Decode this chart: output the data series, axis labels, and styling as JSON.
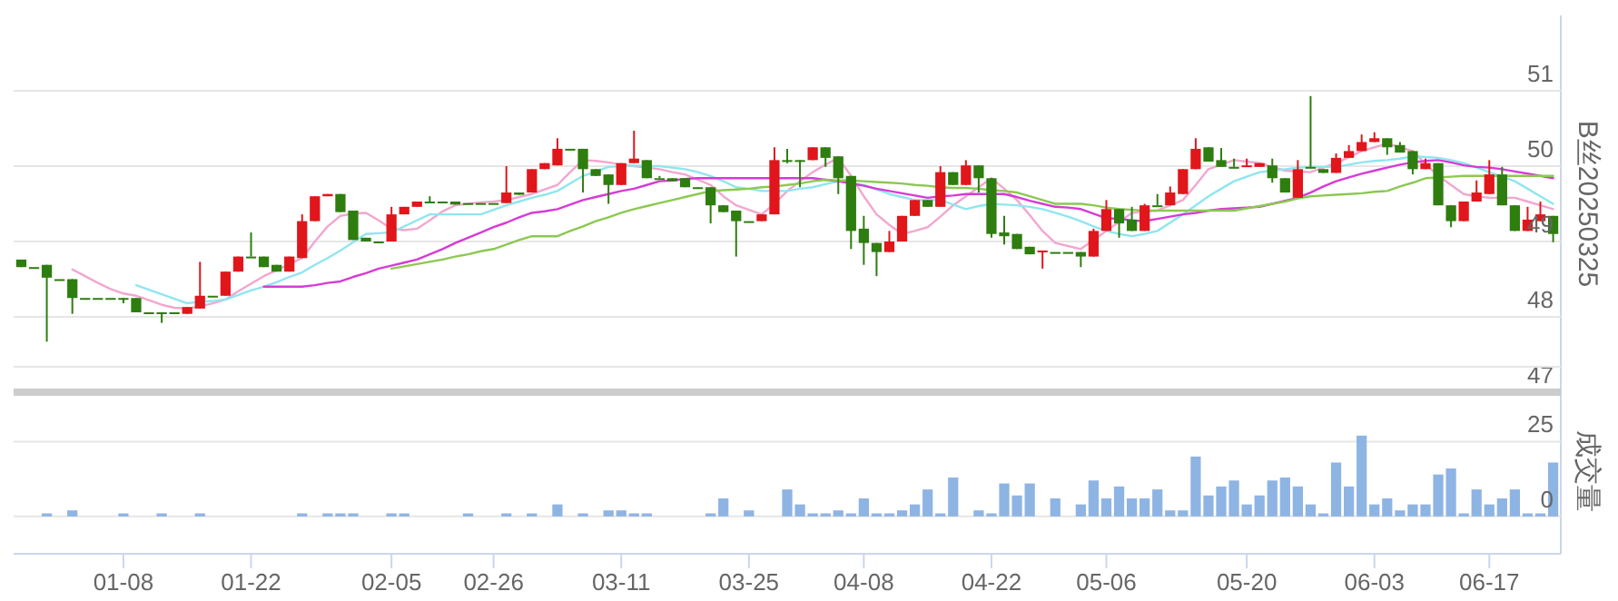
{
  "chart_data": [
    {
      "type": "candlestick",
      "ylabel": "B丝20250325",
      "grid": "y",
      "tick_labels": "y",
      "ylim": [
        47,
        52
      ],
      "yticks": [
        47,
        48,
        49,
        50,
        51
      ],
      "categories": [
        null,
        null,
        null,
        null,
        null,
        null,
        null,
        null,
        null,
        null,
        null,
        null,
        null,
        null,
        null,
        null,
        null,
        null,
        null,
        null,
        null,
        null,
        null,
        null,
        null,
        null,
        null,
        null,
        null,
        null,
        null,
        null,
        null,
        null,
        null,
        null,
        null,
        null,
        null,
        null,
        null,
        null,
        null,
        null,
        null,
        null,
        null,
        null,
        null,
        null,
        null,
        null,
        null,
        null,
        null,
        null,
        null,
        null,
        null,
        null,
        null,
        null,
        null,
        null,
        null,
        null,
        null,
        null,
        null,
        null,
        null,
        null,
        null,
        null,
        null,
        null,
        null,
        null,
        null,
        null,
        null,
        null,
        null,
        null,
        null,
        null,
        null,
        null,
        null,
        null,
        null,
        null,
        null,
        null,
        null,
        null,
        null,
        null,
        null,
        null,
        null,
        null,
        null,
        null,
        null,
        null,
        null,
        null,
        null,
        null,
        null,
        null,
        null,
        null,
        null,
        null,
        null,
        null,
        null,
        null,
        null
      ],
      "colors": [
        "#2e7d0f",
        "#2e7d0f",
        "#2e7d0f",
        "#2e7d0f",
        "#2e7d0f",
        "#2e7d0f",
        "#2e7d0f",
        "#2e7d0f",
        "#2e7d0f",
        "#2e7d0f",
        "#2e7d0f",
        "#2e7d0f",
        "#2e7d0f",
        "#e0161b",
        "#e0161b",
        "#2e7d0f",
        "#e0161b",
        "#e0161b",
        "#2e7d0f",
        "#2e7d0f",
        "#2e7d0f",
        "#e0161b",
        "#e0161b",
        "#e0161b",
        "#e0161b",
        "#2e7d0f",
        "#2e7d0f",
        "#2e7d0f",
        "#2e7d0f",
        "#e0161b",
        "#e0161b",
        "#e0161b",
        "#2e7d0f",
        "#2e7d0f",
        "#2e7d0f",
        "#2e7d0f",
        "#2e7d0f",
        "#2e7d0f",
        "#e0161b",
        "#2e7d0f",
        "#e0161b",
        "#e0161b",
        "#e0161b",
        "#2e7d0f",
        "#2e7d0f",
        "#2e7d0f",
        "#2e7d0f",
        "#e0161b",
        "#e0161b",
        "#2e7d0f",
        "#2e7d0f",
        "#2e7d0f",
        "#2e7d0f",
        "#2e7d0f",
        "#2e7d0f",
        "#2e7d0f",
        "#2e7d0f",
        "#2e7d0f",
        "#e0161b",
        "#e0161b",
        "#2e7d0f",
        "#2e7d0f",
        "#e0161b",
        "#2e7d0f",
        "#2e7d0f",
        "#2e7d0f",
        "#2e7d0f",
        "#2e7d0f",
        "#e0161b",
        "#e0161b",
        "#e0161b",
        "#2e7d0f",
        "#e0161b",
        "#2e7d0f",
        "#e0161b",
        "#2e7d0f",
        "#2e7d0f",
        "#2e7d0f",
        "#2e7d0f",
        "#2e7d0f",
        "#e0161b",
        "#2e7d0f",
        "#2e7d0f",
        "#2e7d0f",
        "#e0161b",
        "#e0161b",
        "#2e7d0f",
        "#2e7d0f",
        "#e0161b",
        "#2e7d0f",
        "#e0161b",
        "#e0161b",
        "#e0161b",
        "#2e7d0f",
        "#2e7d0f",
        "#2e7d0f",
        "#e0161b",
        "#e0161b",
        "#2e7d0f",
        "#2e7d0f",
        "#e0161b",
        "#2e7d0f",
        "#2e7d0f",
        "#e0161b",
        "#e0161b",
        "#e0161b",
        "#e0161b",
        "#2e7d0f",
        "#2e7d0f",
        "#2e7d0f",
        "#e0161b",
        "#2e7d0f",
        "#2e7d0f",
        "#e0161b",
        "#e0161b",
        "#e0161b",
        "#2e7d0f",
        "#2e7d0f",
        "#e0161b",
        "#e0161b",
        "#2e7d0f"
      ],
      "ohlc": [
        [
          48.76,
          48.76,
          48.66,
          48.66
        ],
        [
          48.66,
          48.66,
          48.66,
          48.66
        ],
        [
          48.69,
          48.69,
          47.67,
          48.52
        ],
        [
          48.5,
          48.5,
          48.5,
          48.5
        ],
        [
          48.5,
          48.5,
          48.04,
          48.25
        ],
        [
          48.25,
          48.25,
          48.25,
          48.25
        ],
        [
          48.25,
          48.25,
          48.25,
          48.25
        ],
        [
          48.25,
          48.25,
          48.25,
          48.25
        ],
        [
          48.25,
          48.25,
          48.18,
          48.25
        ],
        [
          48.25,
          48.25,
          48.06,
          48.06
        ],
        [
          48.06,
          48.06,
          48.06,
          48.06
        ],
        [
          48.06,
          48.06,
          47.92,
          48.06
        ],
        [
          48.06,
          48.06,
          48.06,
          48.06
        ],
        [
          48.04,
          48.13,
          48.04,
          48.13
        ],
        [
          48.11,
          48.73,
          48.11,
          48.28
        ],
        [
          48.28,
          48.28,
          48.28,
          48.28
        ],
        [
          48.28,
          48.6,
          48.28,
          48.6
        ],
        [
          48.6,
          48.8,
          48.6,
          48.8
        ],
        [
          48.8,
          49.12,
          48.8,
          48.8
        ],
        [
          48.8,
          48.8,
          48.66,
          48.66
        ],
        [
          48.69,
          48.69,
          48.6,
          48.6
        ],
        [
          48.6,
          48.8,
          48.6,
          48.8
        ],
        [
          48.78,
          49.36,
          48.78,
          49.27
        ],
        [
          49.27,
          49.6,
          49.27,
          49.6
        ],
        [
          49.6,
          49.63,
          49.6,
          49.63
        ],
        [
          49.63,
          49.63,
          49.39,
          49.39
        ],
        [
          49.41,
          49.41,
          49.02,
          49.02
        ],
        [
          49.05,
          49.05,
          49.0,
          49.0
        ],
        [
          49.0,
          49.0,
          49.0,
          49.0
        ],
        [
          49.0,
          49.46,
          49.0,
          49.36
        ],
        [
          49.36,
          49.46,
          49.36,
          49.46
        ],
        [
          49.46,
          49.53,
          49.46,
          49.53
        ],
        [
          49.53,
          49.6,
          49.53,
          49.53
        ],
        [
          49.53,
          49.53,
          49.53,
          49.53
        ],
        [
          49.53,
          49.53,
          49.49,
          49.49
        ],
        [
          49.51,
          49.51,
          49.51,
          49.51
        ],
        [
          49.51,
          49.51,
          49.51,
          49.51
        ],
        [
          49.51,
          49.51,
          49.51,
          49.51
        ],
        [
          49.51,
          50.0,
          49.51,
          49.65
        ],
        [
          49.65,
          49.65,
          49.62,
          49.62
        ],
        [
          49.65,
          49.96,
          49.65,
          49.96
        ],
        [
          49.96,
          50.04,
          49.96,
          50.04
        ],
        [
          50.01,
          50.37,
          50.01,
          50.23
        ],
        [
          50.23,
          50.23,
          50.23,
          50.23
        ],
        [
          50.23,
          50.23,
          49.65,
          49.96
        ],
        [
          49.96,
          49.96,
          49.87,
          49.87
        ],
        [
          49.89,
          49.89,
          49.5,
          49.75
        ],
        [
          49.75,
          50.04,
          49.75,
          50.04
        ],
        [
          50.04,
          50.47,
          50.04,
          50.1
        ],
        [
          50.08,
          50.08,
          49.84,
          49.84
        ],
        [
          49.84,
          49.87,
          49.84,
          49.84
        ],
        [
          49.84,
          49.84,
          49.8,
          49.8
        ],
        [
          49.84,
          49.84,
          49.72,
          49.72
        ],
        [
          49.72,
          49.72,
          49.7,
          49.72
        ],
        [
          49.72,
          49.72,
          49.24,
          49.48
        ],
        [
          49.48,
          49.48,
          49.39,
          49.39
        ],
        [
          49.41,
          49.41,
          48.8,
          49.27
        ],
        [
          49.27,
          49.27,
          49.27,
          49.27
        ],
        [
          49.27,
          49.36,
          49.27,
          49.36
        ],
        [
          49.36,
          50.25,
          49.36,
          50.08
        ],
        [
          50.08,
          50.23,
          50.04,
          50.08
        ],
        [
          50.08,
          50.08,
          49.72,
          50.08
        ],
        [
          50.08,
          50.25,
          50.08,
          50.25
        ],
        [
          50.25,
          50.25,
          49.99,
          50.11
        ],
        [
          50.13,
          50.13,
          49.63,
          49.84
        ],
        [
          49.87,
          49.87,
          48.9,
          49.14
        ],
        [
          49.17,
          49.34,
          48.69,
          48.98
        ],
        [
          48.98,
          48.98,
          48.54,
          48.86
        ],
        [
          48.86,
          49.14,
          48.86,
          49.0
        ],
        [
          49.0,
          49.34,
          49.0,
          49.34
        ],
        [
          49.34,
          49.55,
          49.34,
          49.55
        ],
        [
          49.55,
          49.55,
          49.46,
          49.46
        ],
        [
          49.46,
          50.0,
          49.46,
          49.92
        ],
        [
          49.92,
          49.92,
          49.75,
          49.75
        ],
        [
          49.75,
          50.08,
          49.75,
          50.01
        ],
        [
          50.01,
          50.01,
          49.65,
          49.84
        ],
        [
          49.84,
          49.84,
          49.05,
          49.1
        ],
        [
          49.12,
          49.34,
          48.96,
          49.07
        ],
        [
          49.1,
          49.1,
          48.9,
          48.9
        ],
        [
          48.93,
          48.93,
          48.83,
          48.83
        ],
        [
          48.86,
          48.88,
          48.64,
          48.88
        ],
        [
          48.86,
          48.86,
          48.86,
          48.86
        ],
        [
          48.86,
          48.86,
          48.86,
          48.86
        ],
        [
          48.86,
          48.86,
          48.66,
          48.8
        ],
        [
          48.8,
          49.17,
          48.8,
          49.14
        ],
        [
          49.14,
          49.55,
          49.14,
          49.43
        ],
        [
          49.43,
          49.43,
          49.05,
          49.24
        ],
        [
          49.29,
          49.46,
          49.14,
          49.14
        ],
        [
          49.14,
          49.5,
          49.14,
          49.48
        ],
        [
          49.48,
          49.63,
          49.48,
          49.48
        ],
        [
          49.48,
          49.73,
          49.48,
          49.65
        ],
        [
          49.63,
          49.96,
          49.63,
          49.96
        ],
        [
          49.96,
          50.37,
          49.96,
          50.23
        ],
        [
          50.25,
          50.25,
          50.06,
          50.06
        ],
        [
          50.08,
          50.24,
          49.99,
          49.99
        ],
        [
          49.99,
          50.1,
          49.99,
          49.99
        ],
        [
          49.99,
          50.1,
          49.99,
          50.01
        ],
        [
          49.99,
          50.04,
          49.99,
          50.04
        ],
        [
          50.01,
          50.1,
          49.78,
          49.84
        ],
        [
          49.84,
          49.84,
          49.65,
          49.65
        ],
        [
          49.58,
          50.08,
          49.58,
          49.96
        ],
        [
          49.99,
          50.93,
          49.99,
          49.99
        ],
        [
          49.96,
          49.96,
          49.91,
          49.91
        ],
        [
          49.91,
          50.17,
          49.91,
          50.11
        ],
        [
          50.11,
          50.28,
          50.11,
          50.2
        ],
        [
          50.2,
          50.42,
          50.2,
          50.32
        ],
        [
          50.32,
          50.45,
          50.32,
          50.37
        ],
        [
          50.37,
          50.37,
          50.15,
          50.25
        ],
        [
          50.28,
          50.32,
          50.18,
          50.18
        ],
        [
          50.2,
          50.2,
          49.89,
          49.96
        ],
        [
          49.96,
          50.1,
          49.96,
          50.04
        ],
        [
          50.04,
          50.04,
          49.48,
          49.48
        ],
        [
          49.48,
          49.48,
          49.19,
          49.27
        ],
        [
          49.27,
          49.53,
          49.27,
          49.53
        ],
        [
          49.53,
          49.81,
          49.53,
          49.65
        ],
        [
          49.63,
          50.08,
          49.63,
          49.89
        ],
        [
          49.89,
          49.99,
          49.48,
          49.48
        ],
        [
          49.48,
          49.48,
          49.14,
          49.14
        ],
        [
          49.14,
          49.46,
          49.14,
          49.29
        ],
        [
          49.27,
          49.53,
          49.27,
          49.36
        ],
        [
          49.34,
          49.34,
          48.99,
          49.1
        ]
      ],
      "series": [
        {
          "type": "line",
          "color": "#f2a7cf",
          "values": [
            null,
            null,
            null,
            null,
            48.63,
            48.54,
            48.45,
            48.37,
            48.31,
            48.28,
            48.22,
            48.16,
            48.12,
            48.11,
            48.14,
            48.18,
            48.23,
            48.34,
            48.44,
            48.54,
            48.62,
            48.7,
            48.78,
            49.0,
            49.2,
            49.34,
            49.37,
            49.38,
            49.28,
            49.17,
            49.15,
            49.17,
            49.28,
            49.4,
            49.48,
            49.5,
            49.52,
            49.53,
            49.55,
            49.59,
            49.63,
            49.69,
            49.75,
            49.92,
            50.08,
            50.07,
            50.05,
            50.02,
            50.0,
            49.98,
            49.96,
            49.92,
            49.89,
            49.82,
            49.75,
            49.6,
            49.48,
            49.42,
            49.36,
            49.5,
            49.67,
            49.8,
            49.92,
            50.02,
            50.11,
            49.87,
            49.6,
            49.36,
            49.22,
            49.1,
            49.14,
            49.19,
            49.33,
            49.48,
            49.6,
            49.72,
            49.84,
            49.7,
            49.55,
            49.35,
            49.14,
            48.98,
            48.94,
            48.9,
            49.02,
            49.14,
            49.26,
            49.38,
            49.4,
            49.41,
            49.48,
            49.55,
            49.75,
            49.96,
            50.02,
            50.08,
            50.06,
            50.04,
            49.99,
            49.94,
            49.93,
            49.92,
            49.98,
            50.04,
            50.12,
            50.2,
            50.25,
            50.3,
            50.25,
            50.2,
            50.03,
            49.87,
            49.75,
            49.63,
            49.6,
            49.58,
            49.58,
            49.58,
            49.53,
            49.48,
            49.43
          ]
        },
        {
          "type": "line",
          "color": "#8fe6ef",
          "values": [
            null,
            null,
            null,
            null,
            null,
            null,
            null,
            null,
            null,
            48.42,
            48.36,
            48.3,
            48.24,
            48.18,
            48.2,
            48.21,
            48.23,
            48.29,
            48.35,
            48.4,
            48.46,
            48.53,
            48.59,
            48.69,
            48.78,
            48.88,
            48.99,
            49.1,
            49.11,
            49.12,
            49.2,
            49.28,
            49.36,
            49.36,
            49.36,
            49.36,
            49.36,
            49.42,
            49.48,
            49.53,
            49.58,
            49.62,
            49.67,
            49.77,
            49.87,
            49.93,
            49.99,
            50.0,
            50.01,
            50.0,
            50.0,
            49.98,
            49.96,
            49.92,
            49.87,
            49.8,
            49.72,
            49.7,
            49.67,
            49.67,
            49.67,
            49.7,
            49.72,
            49.76,
            49.8,
            49.78,
            49.75,
            49.69,
            49.63,
            49.59,
            49.55,
            49.55,
            49.55,
            49.49,
            49.43,
            49.47,
            49.5,
            49.49,
            49.48,
            49.46,
            49.43,
            49.38,
            49.33,
            49.27,
            49.2,
            49.14,
            49.1,
            49.07,
            49.1,
            49.14,
            49.25,
            49.36,
            49.48,
            49.6,
            49.7,
            49.8,
            49.86,
            49.92,
            49.94,
            49.96,
            49.98,
            49.99,
            49.99,
            49.99,
            50.02,
            50.05,
            50.07,
            50.08,
            50.1,
            50.13,
            50.12,
            50.11,
            50.08,
            50.04,
            49.98,
            49.92,
            49.86,
            49.8,
            49.7,
            49.6,
            49.5
          ]
        },
        {
          "type": "line",
          "color": "#d63bd6",
          "values": [
            null,
            null,
            null,
            null,
            null,
            null,
            null,
            null,
            null,
            null,
            null,
            null,
            null,
            null,
            null,
            null,
            null,
            null,
            null,
            48.4,
            48.4,
            48.4,
            48.4,
            48.42,
            48.45,
            48.47,
            48.53,
            48.58,
            48.64,
            48.68,
            48.72,
            48.76,
            48.83,
            48.9,
            48.98,
            49.05,
            49.12,
            49.19,
            49.25,
            49.32,
            49.38,
            49.4,
            49.43,
            49.49,
            49.55,
            49.59,
            49.63,
            49.67,
            49.7,
            49.75,
            49.8,
            49.81,
            49.83,
            49.84,
            49.84,
            49.84,
            49.84,
            49.84,
            49.84,
            49.84,
            49.84,
            49.84,
            49.84,
            49.82,
            49.8,
            49.77,
            49.74,
            49.7,
            49.67,
            49.64,
            49.61,
            49.58,
            49.6,
            49.61,
            49.63,
            49.63,
            49.63,
            49.63,
            49.59,
            49.54,
            49.5,
            49.46,
            49.45,
            49.43,
            49.37,
            49.31,
            49.3,
            49.28,
            49.27,
            49.3,
            49.33,
            49.36,
            49.38,
            49.41,
            49.43,
            49.44,
            49.45,
            49.46,
            49.5,
            49.54,
            49.58,
            49.65,
            49.73,
            49.8,
            49.85,
            49.9,
            49.94,
            49.98,
            50.02,
            50.05,
            50.07,
            50.08,
            50.05,
            50.01,
            49.99,
            49.98,
            49.96,
            49.93,
            49.9,
            49.87,
            49.84
          ]
        },
        {
          "type": "line",
          "color": "#8cc852",
          "values": [
            null,
            null,
            null,
            null,
            null,
            null,
            null,
            null,
            null,
            null,
            null,
            null,
            null,
            null,
            null,
            null,
            null,
            null,
            null,
            null,
            null,
            null,
            null,
            null,
            null,
            null,
            null,
            null,
            null,
            48.64,
            48.67,
            48.7,
            48.73,
            48.76,
            48.8,
            48.83,
            48.87,
            48.9,
            48.96,
            49.02,
            49.07,
            49.07,
            49.07,
            49.14,
            49.2,
            49.27,
            49.32,
            49.38,
            49.43,
            49.47,
            49.51,
            49.55,
            49.59,
            49.63,
            49.67,
            49.68,
            49.69,
            49.7,
            49.72,
            49.73,
            49.75,
            49.77,
            49.8,
            49.82,
            49.81,
            49.81,
            49.8,
            49.79,
            49.78,
            49.77,
            49.75,
            49.74,
            49.72,
            49.71,
            49.71,
            49.7,
            49.68,
            49.67,
            49.65,
            49.6,
            49.55,
            49.5,
            49.5,
            49.5,
            49.48,
            49.45,
            49.43,
            49.42,
            49.41,
            49.41,
            49.41,
            49.41,
            49.41,
            49.41,
            49.41,
            49.41,
            49.44,
            49.47,
            49.5,
            49.53,
            49.57,
            49.6,
            49.61,
            49.62,
            49.63,
            49.64,
            49.66,
            49.67,
            49.73,
            49.78,
            49.84,
            49.85,
            49.86,
            49.87,
            49.87,
            49.87,
            49.87,
            49.87,
            49.87,
            49.87,
            49.87
          ]
        }
      ]
    },
    {
      "type": "bar",
      "ylabel": "成交量",
      "grid": "y",
      "color": "#8eb4e3",
      "ylim": [
        -12.5,
        50
      ],
      "yticks": [
        0,
        25,
        {
          "value": 50,
          "label": null
        }
      ],
      "categories": [
        null,
        null,
        null,
        null,
        null,
        null,
        null,
        null,
        "01-08",
        null,
        null,
        null,
        null,
        null,
        null,
        null,
        null,
        null,
        "01-22",
        null,
        null,
        null,
        null,
        null,
        null,
        null,
        null,
        null,
        null,
        "02-05",
        null,
        null,
        null,
        null,
        null,
        null,
        null,
        "02-26",
        null,
        null,
        null,
        null,
        null,
        null,
        null,
        null,
        null,
        "03-11",
        null,
        null,
        null,
        null,
        null,
        null,
        null,
        null,
        null,
        "03-25",
        null,
        null,
        null,
        null,
        null,
        null,
        null,
        null,
        "04-08",
        null,
        null,
        null,
        null,
        null,
        null,
        null,
        null,
        null,
        "04-22",
        null,
        null,
        null,
        null,
        null,
        null,
        null,
        null,
        "05-06",
        null,
        null,
        null,
        null,
        null,
        null,
        null,
        null,
        null,
        null,
        "05-20",
        null,
        null,
        null,
        null,
        null,
        null,
        null,
        null,
        null,
        "06-03",
        null,
        null,
        null,
        null,
        null,
        null,
        null,
        null,
        "06-17",
        null,
        null,
        null,
        null,
        null
      ],
      "values": [
        0,
        0,
        1,
        0,
        2,
        0,
        0,
        0,
        1,
        0,
        0,
        1,
        0,
        0,
        1,
        0,
        0,
        0,
        0,
        0,
        0,
        0,
        1,
        0,
        1,
        1,
        1,
        0,
        0,
        1,
        1,
        0,
        0,
        0,
        0,
        1,
        0,
        0,
        1,
        0,
        1,
        0,
        4,
        0,
        1,
        0,
        2,
        2,
        1,
        1,
        0,
        0,
        0,
        0,
        1,
        6,
        0,
        2,
        0,
        0,
        9,
        4,
        1,
        1,
        2,
        1,
        6,
        1,
        1,
        2,
        4,
        9,
        1,
        13,
        0,
        2,
        1,
        11,
        7,
        11,
        0,
        6,
        0,
        4,
        12,
        6,
        10,
        6,
        6,
        9,
        2,
        2,
        20,
        7,
        10,
        12,
        4,
        7,
        12,
        13,
        10,
        4,
        1,
        18,
        10,
        27,
        4,
        6,
        2,
        4,
        4,
        14,
        16,
        1,
        9,
        4,
        6,
        9,
        1,
        1,
        18
      ]
    }
  ]
}
